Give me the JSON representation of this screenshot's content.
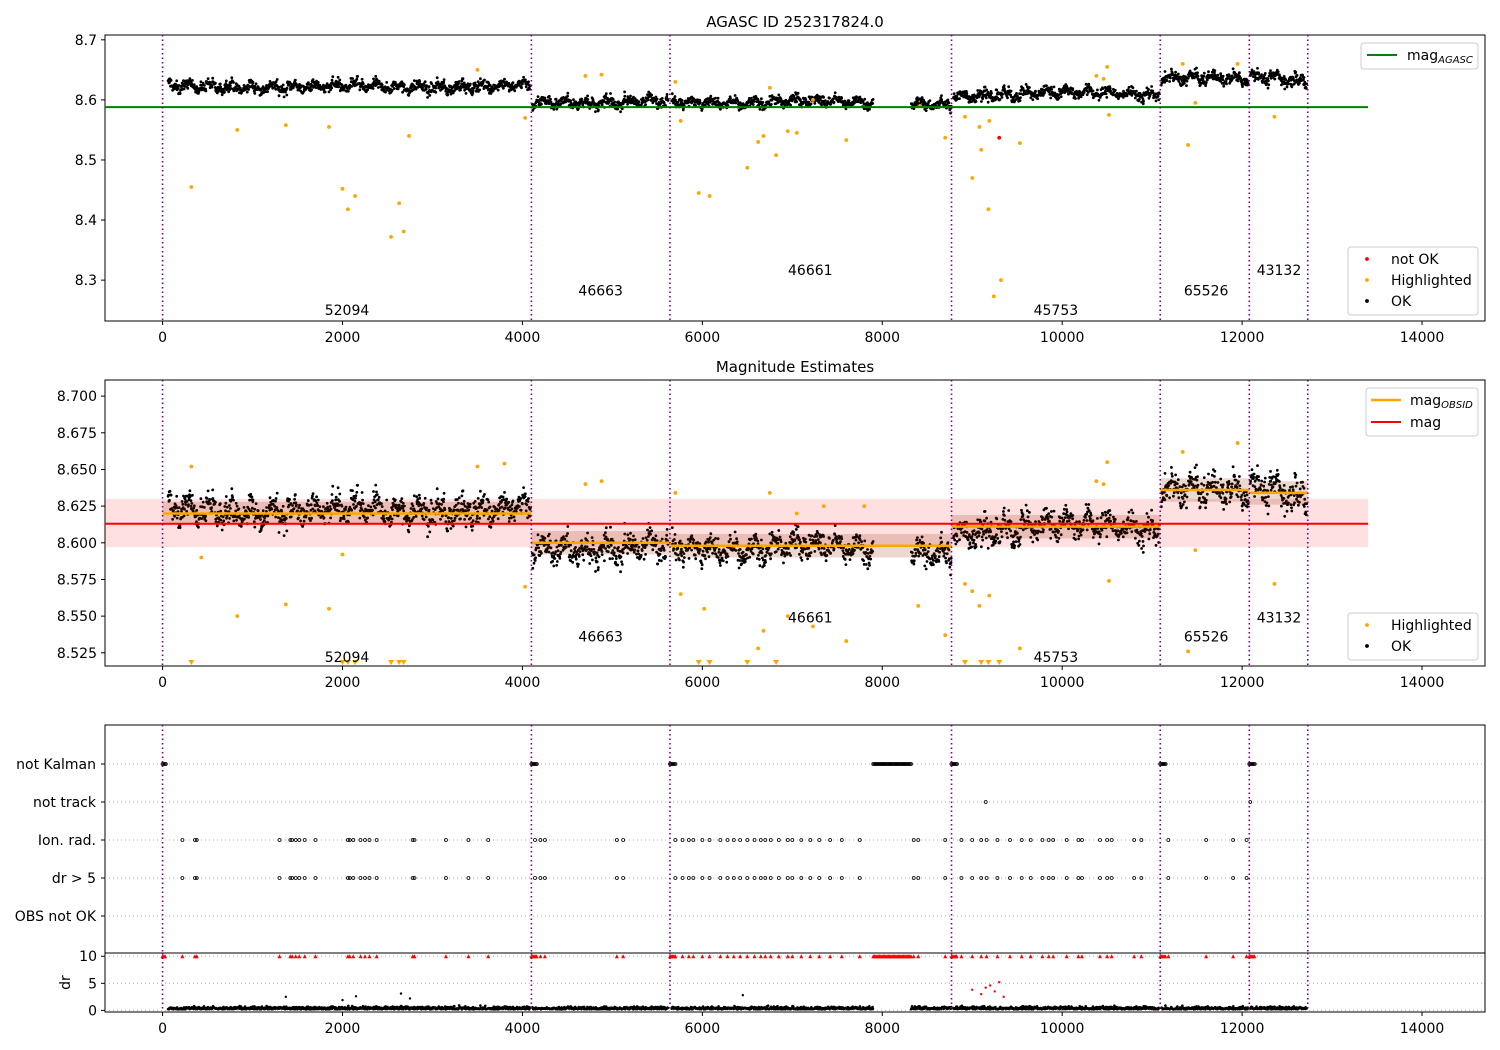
{
  "chart_data": [
    {
      "type": "scatter",
      "title": "AGASC ID 252317824.0",
      "xlim": [
        -640,
        14700
      ],
      "ylim": [
        8.232,
        8.708
      ],
      "xticks": [
        0,
        2000,
        4000,
        6000,
        8000,
        10000,
        12000,
        14000
      ],
      "yticks": [
        8.3,
        8.4,
        8.5,
        8.6,
        8.7
      ],
      "legend_upper": {
        "placement": "upper right",
        "entries": [
          "mag_AGASC"
        ]
      },
      "legend_lower": {
        "placement": "lower right",
        "entries": [
          "not OK",
          "Highlighted",
          "OK"
        ]
      },
      "mag_agasc": {
        "name": "mag_AGASC",
        "value": 8.588,
        "x_range": [
          -640,
          13400
        ],
        "color": "#008000"
      },
      "obsid_boundaries": [
        0,
        4100,
        5640,
        8770,
        11090,
        12080,
        12730
      ],
      "obsid_labels": [
        {
          "text": "52094",
          "x": 2050,
          "y": 8.25
        },
        {
          "text": "46663",
          "x": 4870,
          "y": 8.283
        },
        {
          "text": "46661",
          "x": 7200,
          "y": 8.317
        },
        {
          "text": "45753",
          "x": 9930,
          "y": 8.25
        },
        {
          "text": "65526",
          "x": 11600,
          "y": 8.283
        },
        {
          "text": "43132",
          "x": 12410,
          "y": 8.317
        }
      ],
      "series": [
        {
          "name": "not OK",
          "color": "#ff0000",
          "points": [
            [
              9300,
              8.537
            ]
          ]
        },
        {
          "name": "Highlighted",
          "color": "#ffa500",
          "points": [
            [
              320,
              8.455
            ],
            [
              830,
              8.55
            ],
            [
              1370,
              8.558
            ],
            [
              1850,
              8.555
            ],
            [
              2000,
              8.452
            ],
            [
              2060,
              8.418
            ],
            [
              2140,
              8.44
            ],
            [
              2540,
              8.372
            ],
            [
              2630,
              8.428
            ],
            [
              2680,
              8.381
            ],
            [
              2740,
              8.54
            ],
            [
              3500,
              8.65
            ],
            [
              4030,
              8.57
            ],
            [
              4700,
              8.64
            ],
            [
              4880,
              8.642
            ],
            [
              5700,
              8.63
            ],
            [
              5760,
              8.565
            ],
            [
              5960,
              8.445
            ],
            [
              6080,
              8.44
            ],
            [
              6500,
              8.487
            ],
            [
              6620,
              8.53
            ],
            [
              6680,
              8.54
            ],
            [
              6750,
              8.62
            ],
            [
              6820,
              8.508
            ],
            [
              6950,
              8.548
            ],
            [
              7050,
              8.545
            ],
            [
              7230,
              8.6
            ],
            [
              7600,
              8.533
            ],
            [
              8420,
              8.59
            ],
            [
              8700,
              8.537
            ],
            [
              8920,
              8.572
            ],
            [
              9000,
              8.47
            ],
            [
              9080,
              8.555
            ],
            [
              9100,
              8.517
            ],
            [
              9180,
              8.418
            ],
            [
              9190,
              8.565
            ],
            [
              9240,
              8.273
            ],
            [
              9320,
              8.3
            ],
            [
              9530,
              8.528
            ],
            [
              10380,
              8.64
            ],
            [
              10460,
              8.635
            ],
            [
              10500,
              8.655
            ],
            [
              10520,
              8.575
            ],
            [
              11340,
              8.66
            ],
            [
              11400,
              8.525
            ],
            [
              11480,
              8.595
            ],
            [
              11950,
              8.66
            ],
            [
              12360,
              8.572
            ]
          ]
        }
      ],
      "ok_segments": [
        {
          "x": [
            60,
            4090
          ],
          "level": [
            8.624,
            8.62,
            8.624,
            8.62,
            8.626
          ],
          "spread": 0.011
        },
        {
          "x": [
            4110,
            5620
          ],
          "level": [
            8.597,
            8.594,
            8.6
          ],
          "spread": 0.011
        },
        {
          "x": [
            5660,
            7900
          ],
          "level": [
            8.598,
            8.593,
            8.6,
            8.595
          ],
          "spread": 0.01
        },
        {
          "x": [
            8320,
            8770
          ],
          "level": [
            8.593,
            8.592
          ],
          "spread": 0.01
        },
        {
          "x": [
            8790,
            11080
          ],
          "level": [
            8.606,
            8.608,
            8.614,
            8.612,
            8.607
          ],
          "spread": 0.011
        },
        {
          "x": [
            11100,
            12070
          ],
          "level": [
            8.636,
            8.637,
            8.635
          ],
          "spread": 0.011
        },
        {
          "x": [
            12090,
            12720
          ],
          "level": [
            8.64,
            8.636,
            8.63
          ],
          "spread": 0.012
        }
      ]
    },
    {
      "type": "scatter",
      "title": "Magnitude Estimates",
      "xlim": [
        -640,
        14700
      ],
      "ylim": [
        8.516,
        8.711
      ],
      "xticks": [
        0,
        2000,
        4000,
        6000,
        8000,
        10000,
        12000,
        14000
      ],
      "yticks": [
        8.525,
        8.55,
        8.575,
        8.6,
        8.625,
        8.65,
        8.675,
        8.7
      ],
      "ytick_labels": [
        "8.525",
        "8.550",
        "8.575",
        "8.600",
        "8.625",
        "8.650",
        "8.675",
        "8.700"
      ],
      "legend_upper": {
        "placement": "upper right",
        "entries": [
          "mag_OBSID",
          "mag"
        ]
      },
      "legend_lower": {
        "placement": "lower right",
        "entries": [
          "Highlighted",
          "OK"
        ]
      },
      "mag": {
        "name": "mag",
        "value": 8.613,
        "x_range": [
          -640,
          13400
        ],
        "band": [
          8.597,
          8.63
        ],
        "color": "#ff0000"
      },
      "mag_obsid": [
        {
          "x": [
            0,
            4100
          ],
          "value": 8.62
        },
        {
          "x": [
            4100,
            5640
          ],
          "value": 8.6
        },
        {
          "x": [
            5640,
            8770
          ],
          "value": 8.598
        },
        {
          "x": [
            8770,
            11090
          ],
          "value": 8.611
        },
        {
          "x": [
            11090,
            12080
          ],
          "value": 8.636
        },
        {
          "x": [
            12080,
            12730
          ],
          "value": 8.634
        }
      ],
      "obsid_boundaries": [
        0,
        4100,
        5640,
        8770,
        11090,
        12080,
        12730
      ],
      "obsid_labels": [
        {
          "text": "52094",
          "x": 2050,
          "y": 8.522
        },
        {
          "text": "46663",
          "x": 4870,
          "y": 8.536
        },
        {
          "text": "46661",
          "x": 7200,
          "y": 8.549
        },
        {
          "text": "45753",
          "x": 9930,
          "y": 8.522
        },
        {
          "text": "65526",
          "x": 11600,
          "y": 8.536
        },
        {
          "text": "43132",
          "x": 12410,
          "y": 8.549
        }
      ],
      "series": [
        {
          "name": "Highlighted",
          "color": "#ffa500",
          "points": [
            [
              320,
              8.652
            ],
            [
              430,
              8.59
            ],
            [
              830,
              8.55
            ],
            [
              1370,
              8.558
            ],
            [
              1850,
              8.555
            ],
            [
              2000,
              8.592
            ],
            [
              3500,
              8.652
            ],
            [
              3800,
              8.654
            ],
            [
              4030,
              8.57
            ],
            [
              4700,
              8.64
            ],
            [
              4880,
              8.642
            ],
            [
              5700,
              8.634
            ],
            [
              5760,
              8.565
            ],
            [
              6020,
              8.555
            ],
            [
              6680,
              8.54
            ],
            [
              6620,
              8.528
            ],
            [
              6750,
              8.634
            ],
            [
              6950,
              8.55
            ],
            [
              7050,
              8.62
            ],
            [
              7230,
              8.543
            ],
            [
              7350,
              8.625
            ],
            [
              7600,
              8.533
            ],
            [
              7800,
              8.625
            ],
            [
              8400,
              8.557
            ],
            [
              8700,
              8.537
            ],
            [
              8920,
              8.572
            ],
            [
              9000,
              8.567
            ],
            [
              9080,
              8.557
            ],
            [
              9190,
              8.564
            ],
            [
              9530,
              8.528
            ],
            [
              10380,
              8.642
            ],
            [
              10460,
              8.64
            ],
            [
              10500,
              8.655
            ],
            [
              10520,
              8.574
            ],
            [
              11340,
              8.662
            ],
            [
              11400,
              8.526
            ],
            [
              11480,
              8.595
            ],
            [
              11950,
              8.668
            ],
            [
              12360,
              8.572
            ]
          ]
        },
        {
          "name": "below-axis markers",
          "color": "#ffa500",
          "points": [
            [
              320,
              8.516
            ],
            [
              2000,
              8.516
            ],
            [
              2060,
              8.516
            ],
            [
              2140,
              8.516
            ],
            [
              2540,
              8.516
            ],
            [
              2630,
              8.516
            ],
            [
              2680,
              8.516
            ],
            [
              5960,
              8.516
            ],
            [
              6080,
              8.516
            ],
            [
              6500,
              8.516
            ],
            [
              6820,
              8.516
            ],
            [
              8920,
              8.516
            ],
            [
              9100,
              8.516
            ],
            [
              9180,
              8.516
            ],
            [
              9300,
              8.516
            ]
          ]
        }
      ]
    },
    {
      "type": "scatter",
      "xlim": [
        -640,
        14700
      ],
      "categories": [
        "not Kalman",
        "not track",
        "Ion. rad.",
        "dr > 5",
        "OBS not OK"
      ],
      "flags": {
        "not Kalman": [
          [
            0,
            40
          ],
          [
            4100,
            4160
          ],
          [
            5640,
            5700
          ],
          [
            7900,
            8330
          ],
          [
            8770,
            8830
          ],
          [
            11090,
            11150
          ],
          [
            12080,
            12140
          ]
        ],
        "not track": [
          [
            9150,
            9150
          ],
          [
            12090,
            12090
          ]
        ],
        "Ion. rad.": [
          220,
          360,
          380,
          1300,
          1420,
          1440,
          1480,
          1520,
          1580,
          1700,
          2060,
          2080,
          2120,
          2200,
          2250,
          2300,
          2380,
          2780,
          2800,
          3150,
          3400,
          3620,
          4140,
          4200,
          4250,
          5050,
          5120,
          5700,
          5780,
          5850,
          5900,
          6000,
          6080,
          6200,
          6280,
          6350,
          6420,
          6500,
          6580,
          6650,
          6700,
          6760,
          6850,
          6950,
          7000,
          7100,
          7200,
          7300,
          7420,
          7550,
          7750,
          8350,
          8400,
          8700,
          8880,
          9000,
          9100,
          9160,
          9280,
          9420,
          9550,
          9650,
          9780,
          9850,
          9900,
          10050,
          10180,
          10220,
          10420,
          10500,
          10550,
          10800,
          10880,
          11180,
          11600,
          11900,
          12050
        ],
        "dr > 5": [
          220,
          360,
          380,
          1300,
          1420,
          1440,
          1480,
          1520,
          1580,
          1700,
          2060,
          2080,
          2120,
          2200,
          2250,
          2300,
          2380,
          2780,
          2800,
          3150,
          3400,
          3620,
          4140,
          4200,
          4250,
          5050,
          5120,
          5700,
          5780,
          5850,
          5900,
          6000,
          6080,
          6200,
          6280,
          6350,
          6420,
          6500,
          6580,
          6650,
          6700,
          6760,
          6850,
          6950,
          7000,
          7100,
          7200,
          7300,
          7420,
          7550,
          7750,
          8350,
          8400,
          8700,
          8880,
          9000,
          9100,
          9160,
          9280,
          9420,
          9550,
          9650,
          9780,
          9850,
          9900,
          10050,
          10180,
          10220,
          10420,
          10500,
          10550,
          10800,
          10880,
          11180,
          11600,
          11900,
          12050
        ],
        "OBS not OK": []
      },
      "obsid_boundaries": [
        0,
        4100,
        5640,
        8770,
        11090,
        12080,
        12730
      ]
    },
    {
      "type": "scatter",
      "xlim": [
        -640,
        14700
      ],
      "ylim": [
        -0.3,
        10.6
      ],
      "ylabel": "dr",
      "yticks": [
        0,
        5,
        10
      ],
      "xticks": [
        0,
        2000,
        4000,
        6000,
        8000,
        10000,
        12000,
        14000
      ],
      "obsid_boundaries": [
        0,
        4100,
        5640,
        8770,
        11090,
        12080,
        12730
      ],
      "ok_segments": [
        [
          60,
          4090
        ],
        [
          4110,
          5620
        ],
        [
          5660,
          7900
        ],
        [
          8320,
          8770
        ],
        [
          8790,
          11080
        ],
        [
          11100,
          12070
        ],
        [
          12090,
          12720
        ]
      ],
      "typical_dr": [
        0,
        1.2
      ],
      "outliers": [
        [
          1370,
          2.5
        ],
        [
          2000,
          1.9
        ],
        [
          2150,
          2.6
        ],
        [
          2650,
          3.1
        ],
        [
          2750,
          2.2
        ],
        [
          6450,
          2.8
        ],
        [
          9000,
          3.8
        ],
        [
          9100,
          3.0
        ],
        [
          9150,
          4.2
        ],
        [
          9200,
          4.6
        ],
        [
          9250,
          3.5
        ],
        [
          9300,
          5.2
        ],
        [
          9350,
          2.5
        ]
      ],
      "clipped_marker_value": 10
    }
  ]
}
